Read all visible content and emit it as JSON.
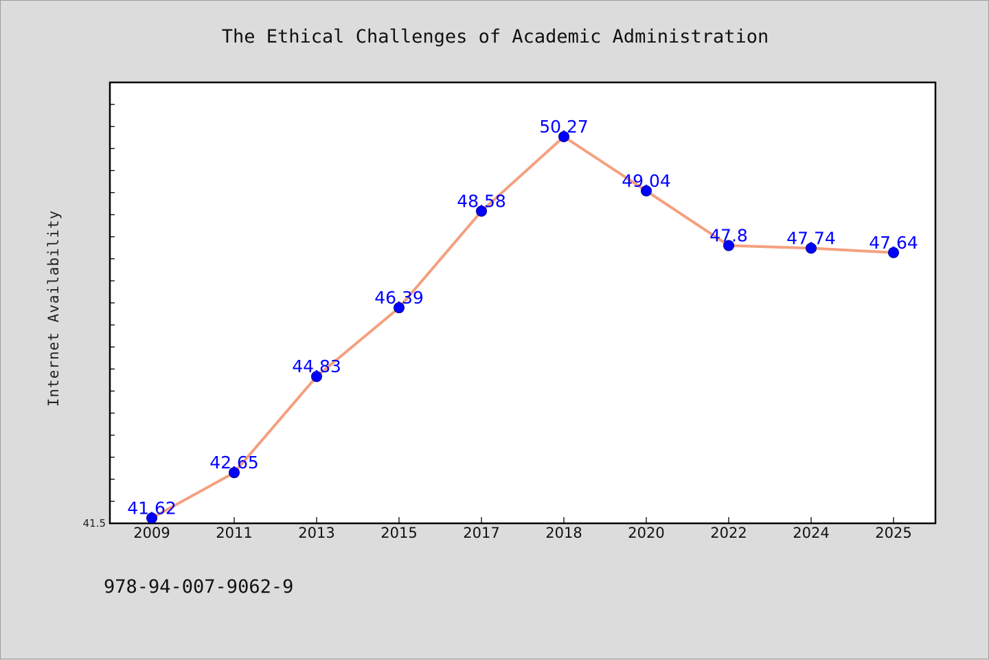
{
  "chart_data": {
    "type": "line",
    "title": "The Ethical Challenges of Academic Administration",
    "xlabel": "",
    "ylabel": "Internet Availability",
    "categories": [
      "2009",
      "2011",
      "2013",
      "2015",
      "2017",
      "2018",
      "2020",
      "2022",
      "2024",
      "2025"
    ],
    "series": [
      {
        "values": [
          41.62,
          42.65,
          44.83,
          46.39,
          48.58,
          50.27,
          49.04,
          47.8,
          47.74,
          47.64
        ],
        "labels": [
          "41.62",
          "42.65",
          "44.83",
          "46.39",
          "48.58",
          "50.27",
          "49.04",
          "47.8",
          "47.74",
          "47.64"
        ]
      }
    ],
    "ylim": [
      41.5,
      51.5
    ],
    "yticks_labeled": [
      "41.5"
    ],
    "grid": false,
    "legend": "none",
    "colors": {
      "line": "#f4a07e",
      "marker": "#0000ff",
      "data_label": "#0000ff",
      "plot_bg": "#ffffff",
      "figure_bg": "#dcdcdc"
    }
  },
  "footer": {
    "isbn": "978-94-007-9062-9"
  }
}
